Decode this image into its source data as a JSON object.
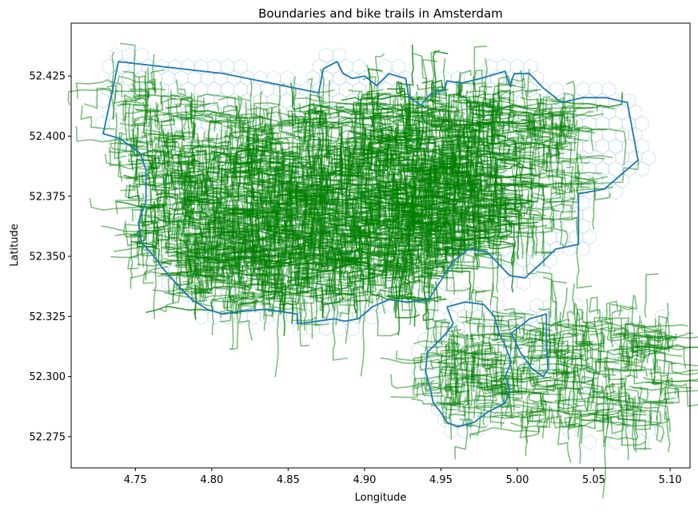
{
  "chart_data": {
    "type": "line",
    "title": "Boundaries and bike trails in Amsterdam",
    "xlabel": "Longitude",
    "ylabel": "Latitude",
    "xlim": [
      4.708,
      5.113
    ],
    "ylim": [
      52.262,
      52.447
    ],
    "x_ticks": [
      "4.75",
      "4.80",
      "4.85",
      "4.90",
      "4.95",
      "5.00",
      "5.05",
      "5.10"
    ],
    "x_tick_values": [
      4.75,
      4.8,
      4.85,
      4.9,
      4.95,
      5.0,
      5.05,
      5.1
    ],
    "y_ticks": [
      "52.275",
      "52.300",
      "52.325",
      "52.350",
      "52.375",
      "52.400",
      "52.425"
    ],
    "y_tick_values": [
      52.275,
      52.3,
      52.325,
      52.35,
      52.375,
      52.4,
      52.425
    ],
    "grid": false,
    "colors": {
      "boundary": "#1f77b4",
      "trails": "#008000",
      "hexgrid": "#a6cee3"
    },
    "boundaries": [
      {
        "points": [
          [
            4.729,
            52.401
          ],
          [
            4.739,
            52.431
          ],
          [
            4.808,
            52.426
          ],
          [
            4.87,
            52.418
          ],
          [
            4.873,
            52.428
          ],
          [
            4.882,
            52.431
          ],
          [
            4.886,
            52.426
          ],
          [
            4.892,
            52.424
          ],
          [
            4.9,
            52.425
          ],
          [
            4.908,
            52.421
          ],
          [
            4.916,
            52.426
          ],
          [
            4.927,
            52.424
          ],
          [
            4.929,
            52.416
          ],
          [
            4.937,
            52.413
          ],
          [
            4.944,
            52.418
          ],
          [
            4.952,
            52.419
          ],
          [
            4.954,
            52.423
          ],
          [
            4.963,
            52.422
          ],
          [
            4.976,
            52.424
          ],
          [
            4.992,
            52.427
          ],
          [
            4.995,
            52.421
          ],
          [
            4.998,
            52.426
          ],
          [
            5.008,
            52.426
          ],
          [
            5.017,
            52.42
          ],
          [
            5.029,
            52.414
          ],
          [
            5.043,
            52.416
          ],
          [
            5.058,
            52.416
          ],
          [
            5.072,
            52.414
          ],
          [
            5.079,
            52.39
          ],
          [
            5.057,
            52.378
          ],
          [
            5.04,
            52.376
          ],
          [
            5.04,
            52.355
          ],
          [
            5.025,
            52.353
          ],
          [
            5.017,
            52.348
          ],
          [
            5.005,
            52.341
          ],
          [
            4.995,
            52.342
          ],
          [
            4.98,
            52.352
          ],
          [
            4.968,
            52.353
          ],
          [
            4.958,
            52.348
          ],
          [
            4.95,
            52.34
          ],
          [
            4.942,
            52.332
          ],
          [
            4.928,
            52.331
          ],
          [
            4.916,
            52.332
          ],
          [
            4.905,
            52.329
          ],
          [
            4.896,
            52.324
          ],
          [
            4.887,
            52.323
          ],
          [
            4.88,
            52.324
          ],
          [
            4.869,
            52.323
          ],
          [
            4.856,
            52.322
          ],
          [
            4.856,
            52.326
          ],
          [
            4.835,
            52.328
          ],
          [
            4.818,
            52.327
          ],
          [
            4.807,
            52.326
          ],
          [
            4.797,
            52.328
          ],
          [
            4.787,
            52.332
          ],
          [
            4.779,
            52.337
          ],
          [
            4.768,
            52.345
          ],
          [
            4.762,
            52.35
          ],
          [
            4.754,
            52.356
          ],
          [
            4.752,
            52.364
          ],
          [
            4.757,
            52.373
          ],
          [
            4.757,
            52.386
          ],
          [
            4.753,
            52.393
          ],
          [
            4.74,
            52.399
          ],
          [
            4.729,
            52.401
          ]
        ]
      },
      {
        "points": [
          [
            4.941,
            52.31
          ],
          [
            4.952,
            52.317
          ],
          [
            4.958,
            52.322
          ],
          [
            4.954,
            52.329
          ],
          [
            4.966,
            52.331
          ],
          [
            4.978,
            52.33
          ],
          [
            4.985,
            52.325
          ],
          [
            4.988,
            52.318
          ],
          [
            4.992,
            52.313
          ],
          [
            4.996,
            52.306
          ],
          [
            4.992,
            52.3
          ],
          [
            4.995,
            52.294
          ],
          [
            4.992,
            52.289
          ],
          [
            4.98,
            52.285
          ],
          [
            4.972,
            52.281
          ],
          [
            4.961,
            52.279
          ],
          [
            4.954,
            52.281
          ],
          [
            4.95,
            52.285
          ],
          [
            4.945,
            52.289
          ],
          [
            4.943,
            52.295
          ],
          [
            4.94,
            52.302
          ],
          [
            4.941,
            52.31
          ]
        ]
      },
      {
        "points": [
          [
            4.996,
            52.318
          ],
          [
            5.008,
            52.324
          ],
          [
            5.019,
            52.326
          ],
          [
            5.019,
            52.314
          ],
          [
            5.02,
            52.303
          ],
          [
            5.017,
            52.3
          ],
          [
            5.01,
            52.303
          ],
          [
            5.002,
            52.31
          ],
          [
            4.996,
            52.318
          ]
        ]
      }
    ],
    "trail_regions": [
      {
        "lon": [
          4.76,
          4.99
        ],
        "lat": [
          52.33,
          52.4
        ]
      },
      {
        "lon": [
          4.75,
          4.98
        ],
        "lat": [
          52.345,
          52.375
        ]
      },
      {
        "lon": [
          4.79,
          4.88
        ],
        "lat": [
          52.33,
          52.39
        ]
      },
      {
        "lon": [
          4.87,
          4.99
        ],
        "lat": [
          52.34,
          52.42
        ]
      },
      {
        "lon": [
          4.735,
          4.79
        ],
        "lat": [
          52.38,
          52.42
        ]
      },
      {
        "lon": [
          4.8,
          4.87
        ],
        "lat": [
          52.385,
          52.415
        ]
      },
      {
        "lon": [
          4.9,
          5.04
        ],
        "lat": [
          52.36,
          52.42
        ]
      },
      {
        "lon": [
          4.945,
          5.0
        ],
        "lat": [
          52.282,
          52.325
        ]
      },
      {
        "lon": [
          4.995,
          5.1
        ],
        "lat": [
          52.28,
          52.325
        ]
      }
    ]
  }
}
